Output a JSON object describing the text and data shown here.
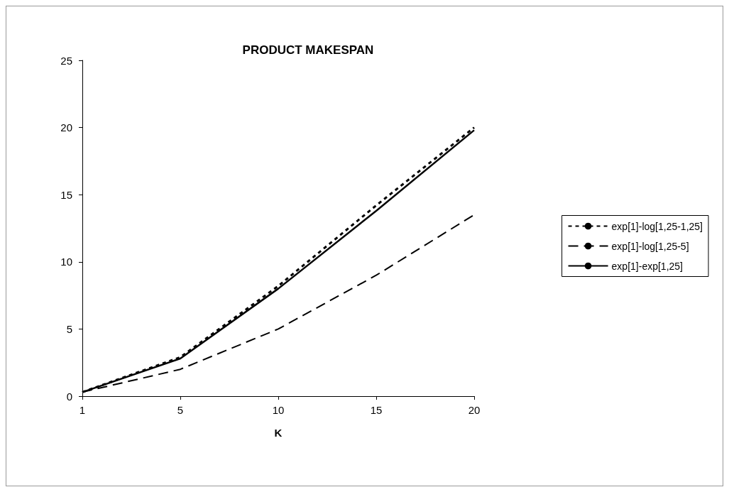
{
  "chart_data": {
    "type": "line",
    "title": "PRODUCT MAKESPAN",
    "xlabel": "K",
    "categories": [
      "1",
      "5",
      "10",
      "15",
      "20"
    ],
    "series": [
      {
        "name": "exp[1]-log[1,25-1,25]",
        "color": "#000000",
        "line_style": "dotted",
        "values": [
          0.3,
          2.9,
          8.2,
          14.2,
          20
        ]
      },
      {
        "name": "exp[1]-log[1,25-5]",
        "color": "#000000",
        "line_style": "dashed",
        "values": [
          0.3,
          2.0,
          5.0,
          9.0,
          13.5
        ]
      },
      {
        "name": "exp[1]-exp[1,25]",
        "color": "#000000",
        "line_style": "solid",
        "values": [
          0.3,
          2.8,
          8.0,
          13.8,
          19.8
        ]
      }
    ],
    "ylim": [
      0,
      25
    ],
    "yticks": [
      0,
      5,
      10,
      15,
      20,
      25
    ],
    "grid": false,
    "legend": "right",
    "marker": "none"
  }
}
